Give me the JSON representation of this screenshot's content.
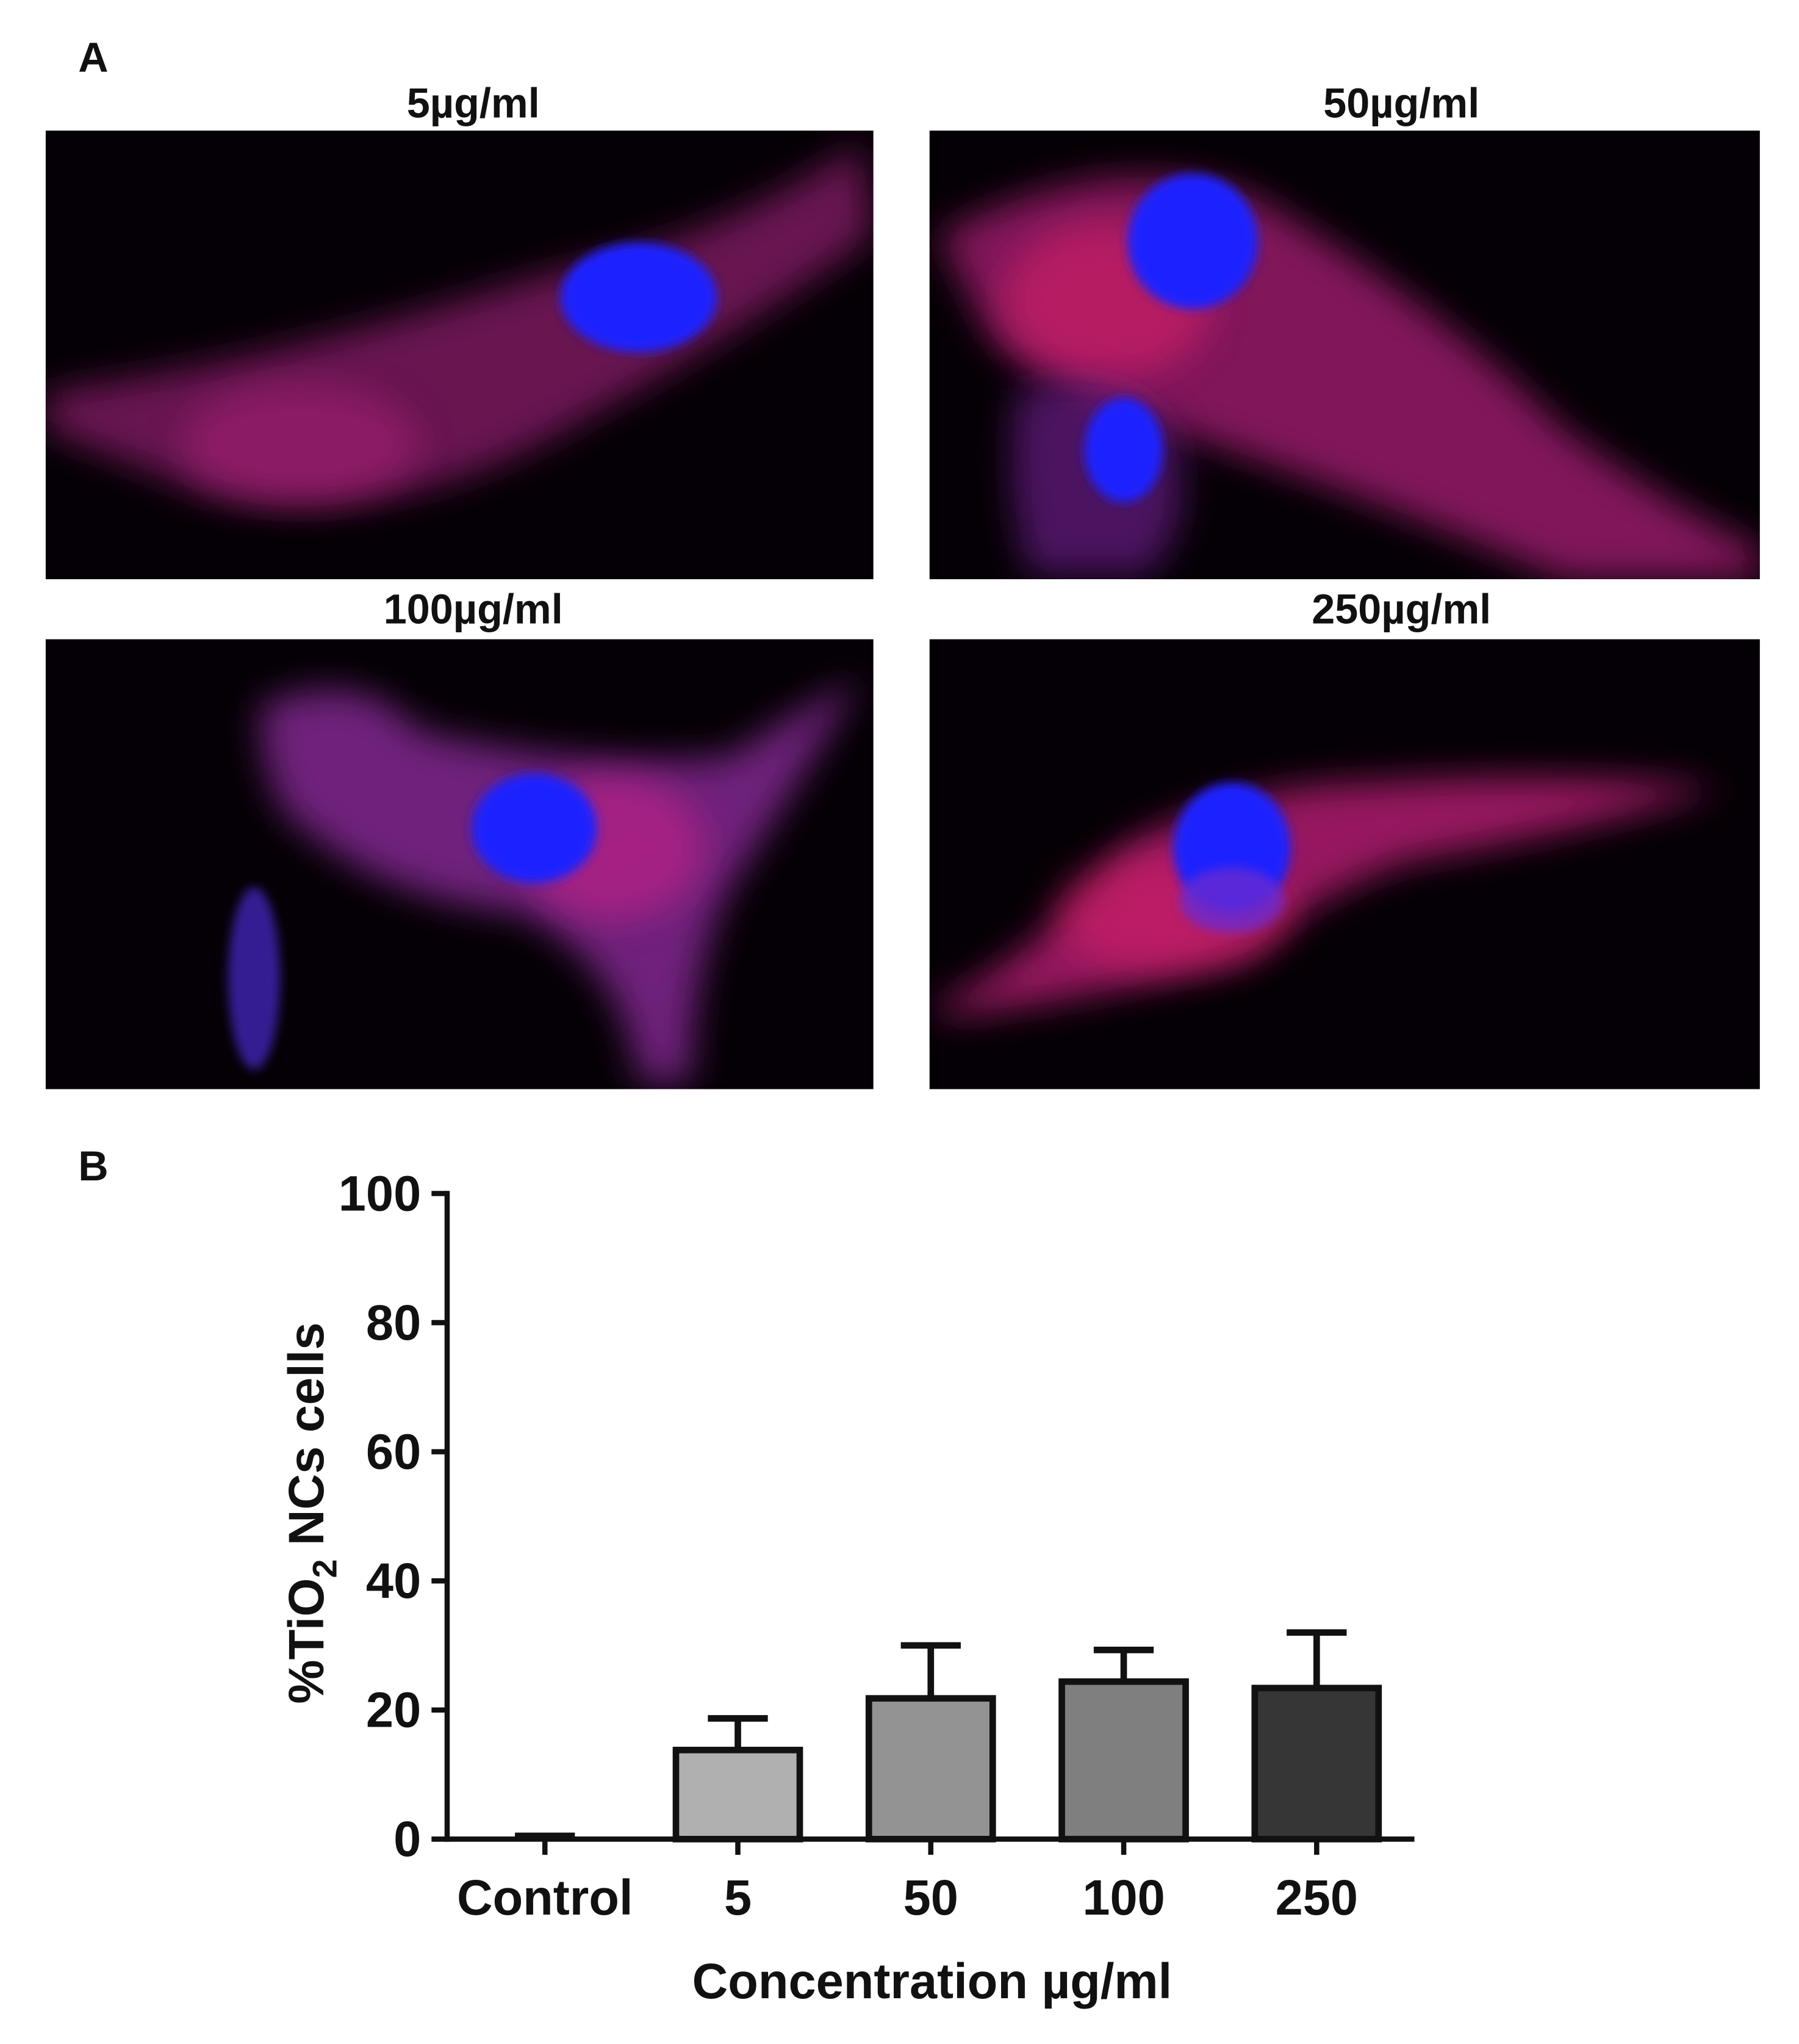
{
  "panel_labels": [
    "A",
    "B"
  ],
  "images": [
    {
      "title": "5µg/ml"
    },
    {
      "title": "50µg/ml"
    },
    {
      "title": "100µg/ml"
    },
    {
      "title": "250µg/ml"
    }
  ],
  "chart_data": {
    "type": "bar",
    "ylabel_parts": [
      "%TiO",
      "2",
      " NCs cells"
    ],
    "xlabel": "Concentration µg/ml",
    "categories": [
      "Control",
      "5",
      "50",
      "100",
      "250"
    ],
    "values": [
      0,
      13.8,
      21.8,
      24.4,
      23.4
    ],
    "errors": [
      0.5,
      4.9,
      8.2,
      4.9,
      8.6
    ],
    "colors": [
      "#ffffff",
      "#b0b0b0",
      "#939393",
      "#7f7f7f",
      "#363636"
    ],
    "ylim": [
      0,
      100
    ],
    "yticks": [
      0,
      20,
      40,
      60,
      80,
      100
    ]
  }
}
